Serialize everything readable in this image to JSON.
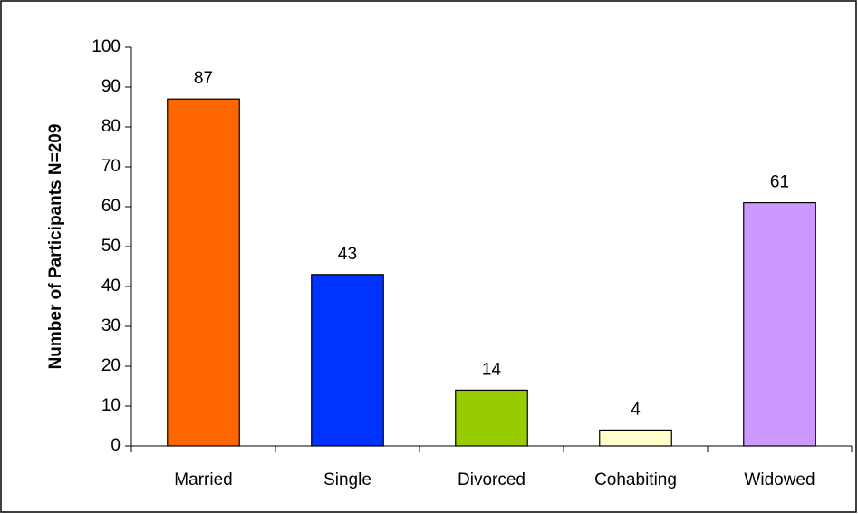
{
  "chart_data": {
    "type": "bar",
    "ylabel": "Number of Participants N=209",
    "categories": [
      "Married",
      "Single",
      "Divorced",
      "Cohabiting",
      "Widowed"
    ],
    "values": [
      87,
      43,
      14,
      4,
      61
    ],
    "colors": [
      "#ff6600",
      "#0033ff",
      "#99cc00",
      "#ffffcc",
      "#cc99ff"
    ],
    "ylim": [
      0,
      100
    ],
    "yticks": [
      0,
      10,
      20,
      30,
      40,
      50,
      60,
      70,
      80,
      90,
      100
    ],
    "grid": false
  }
}
